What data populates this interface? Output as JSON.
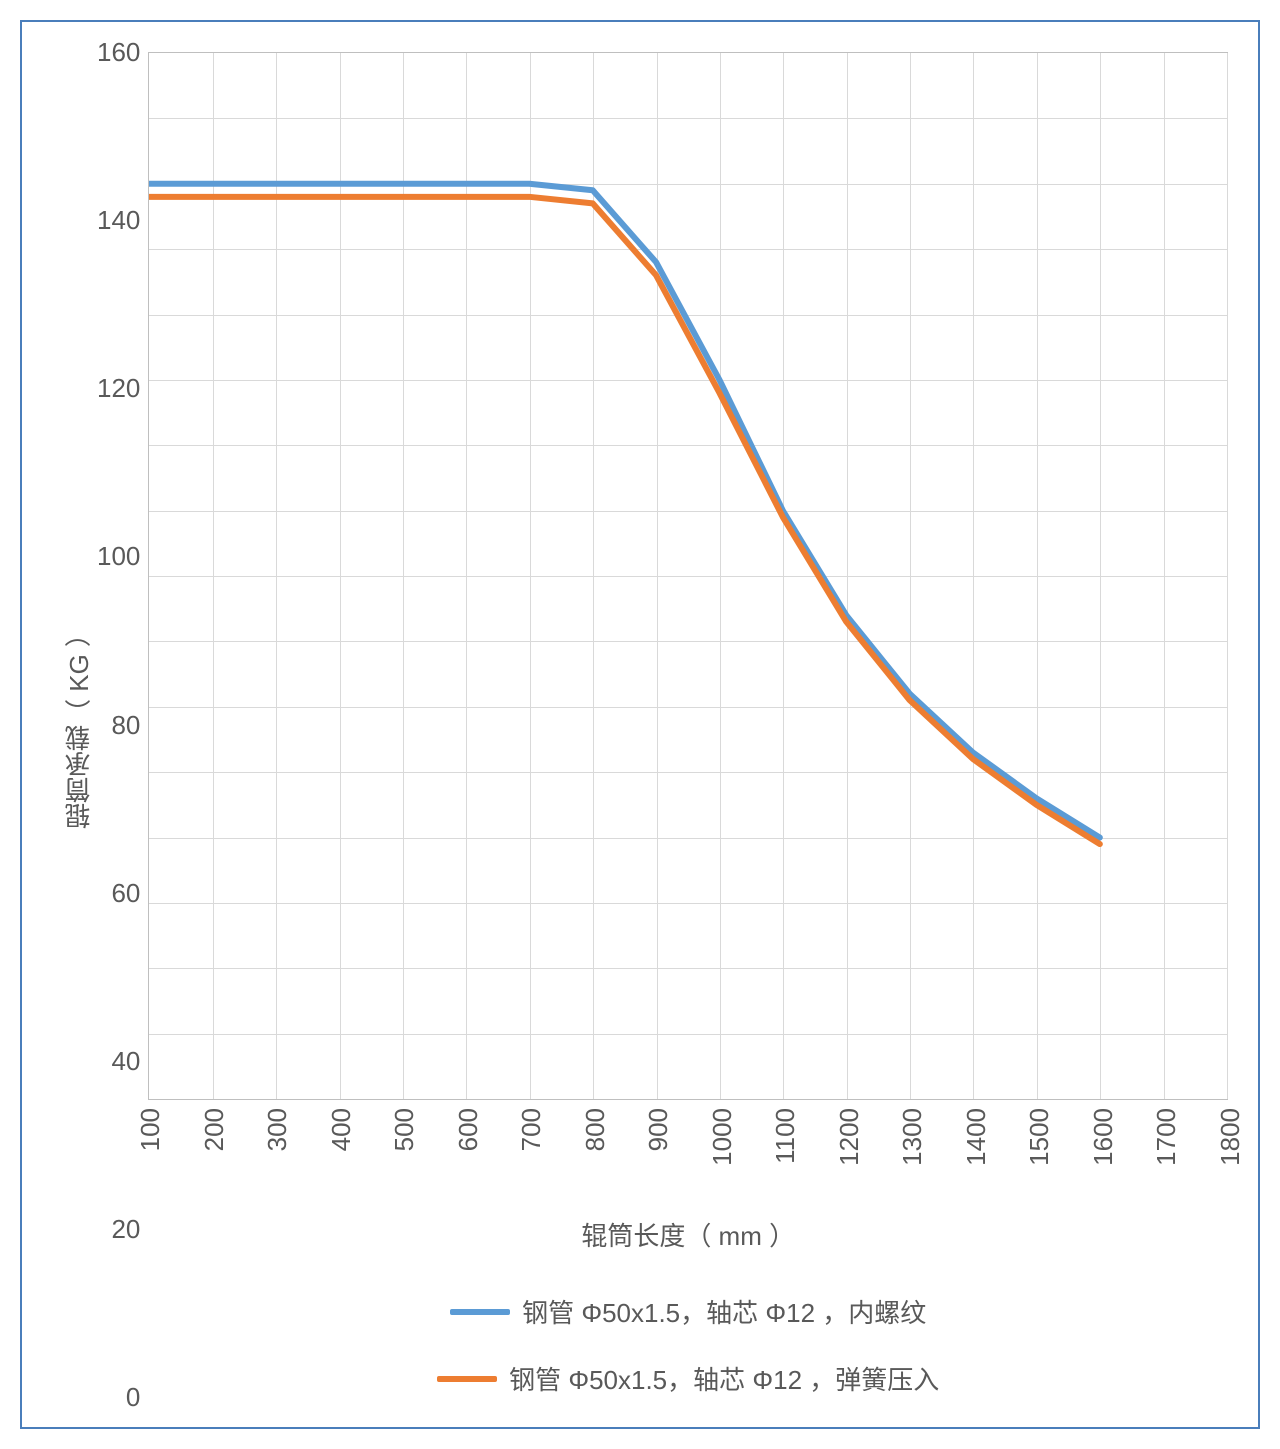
{
  "chart": {
    "type": "line",
    "background_color": "#ffffff",
    "border_color": "#4a7ebb",
    "grid_color": "#d9d9d9",
    "axis_line_color": "#bfbfbf",
    "text_color": "#595959",
    "label_fontsize": 26,
    "tick_fontsize": 26,
    "line_width": 6,
    "y_axis": {
      "label": "辊筒承载（ KG ）",
      "min": 0,
      "max": 160,
      "tick_step": 20,
      "ticks": [
        0,
        20,
        40,
        60,
        80,
        100,
        120,
        140,
        160
      ]
    },
    "x_axis": {
      "label": "辊筒长度（ mm ）",
      "ticks": [
        100,
        200,
        300,
        400,
        500,
        600,
        700,
        800,
        900,
        1000,
        1100,
        1200,
        1300,
        1400,
        1500,
        1600,
        1700,
        1800
      ],
      "data_min_index": 0,
      "data_max_index": 17
    },
    "series": [
      {
        "name": "series-blue",
        "label": "钢管 Φ50x1.5，轴芯 Φ12 ，内螺纹",
        "color": "#5b9bd5",
        "x": [
          100,
          200,
          300,
          400,
          500,
          600,
          700,
          800,
          900,
          1000,
          1100,
          1200,
          1300,
          1400,
          1500,
          1600
        ],
        "y": [
          140,
          140,
          140,
          140,
          140,
          140,
          140,
          139,
          128,
          110,
          90,
          74,
          62,
          53,
          46,
          40
        ]
      },
      {
        "name": "series-orange",
        "label": "钢管 Φ50x1.5，轴芯 Φ12 ，弹簧压入",
        "color": "#ed7d31",
        "x": [
          100,
          200,
          300,
          400,
          500,
          600,
          700,
          800,
          900,
          1000,
          1100,
          1200,
          1300,
          1400,
          1500,
          1600
        ],
        "y": [
          138,
          138,
          138,
          138,
          138,
          138,
          138,
          137,
          126,
          108,
          89,
          73,
          61,
          52,
          45,
          39
        ]
      }
    ],
    "legend": {
      "position": "bottom",
      "items": [
        {
          "label": "钢管 Φ50x1.5，轴芯 Φ12 ，内螺纹",
          "color": "#5b9bd5"
        },
        {
          "label": "钢管 Φ50x1.5，轴芯 Φ12 ，弹簧压入",
          "color": "#ed7d31"
        }
      ]
    }
  }
}
